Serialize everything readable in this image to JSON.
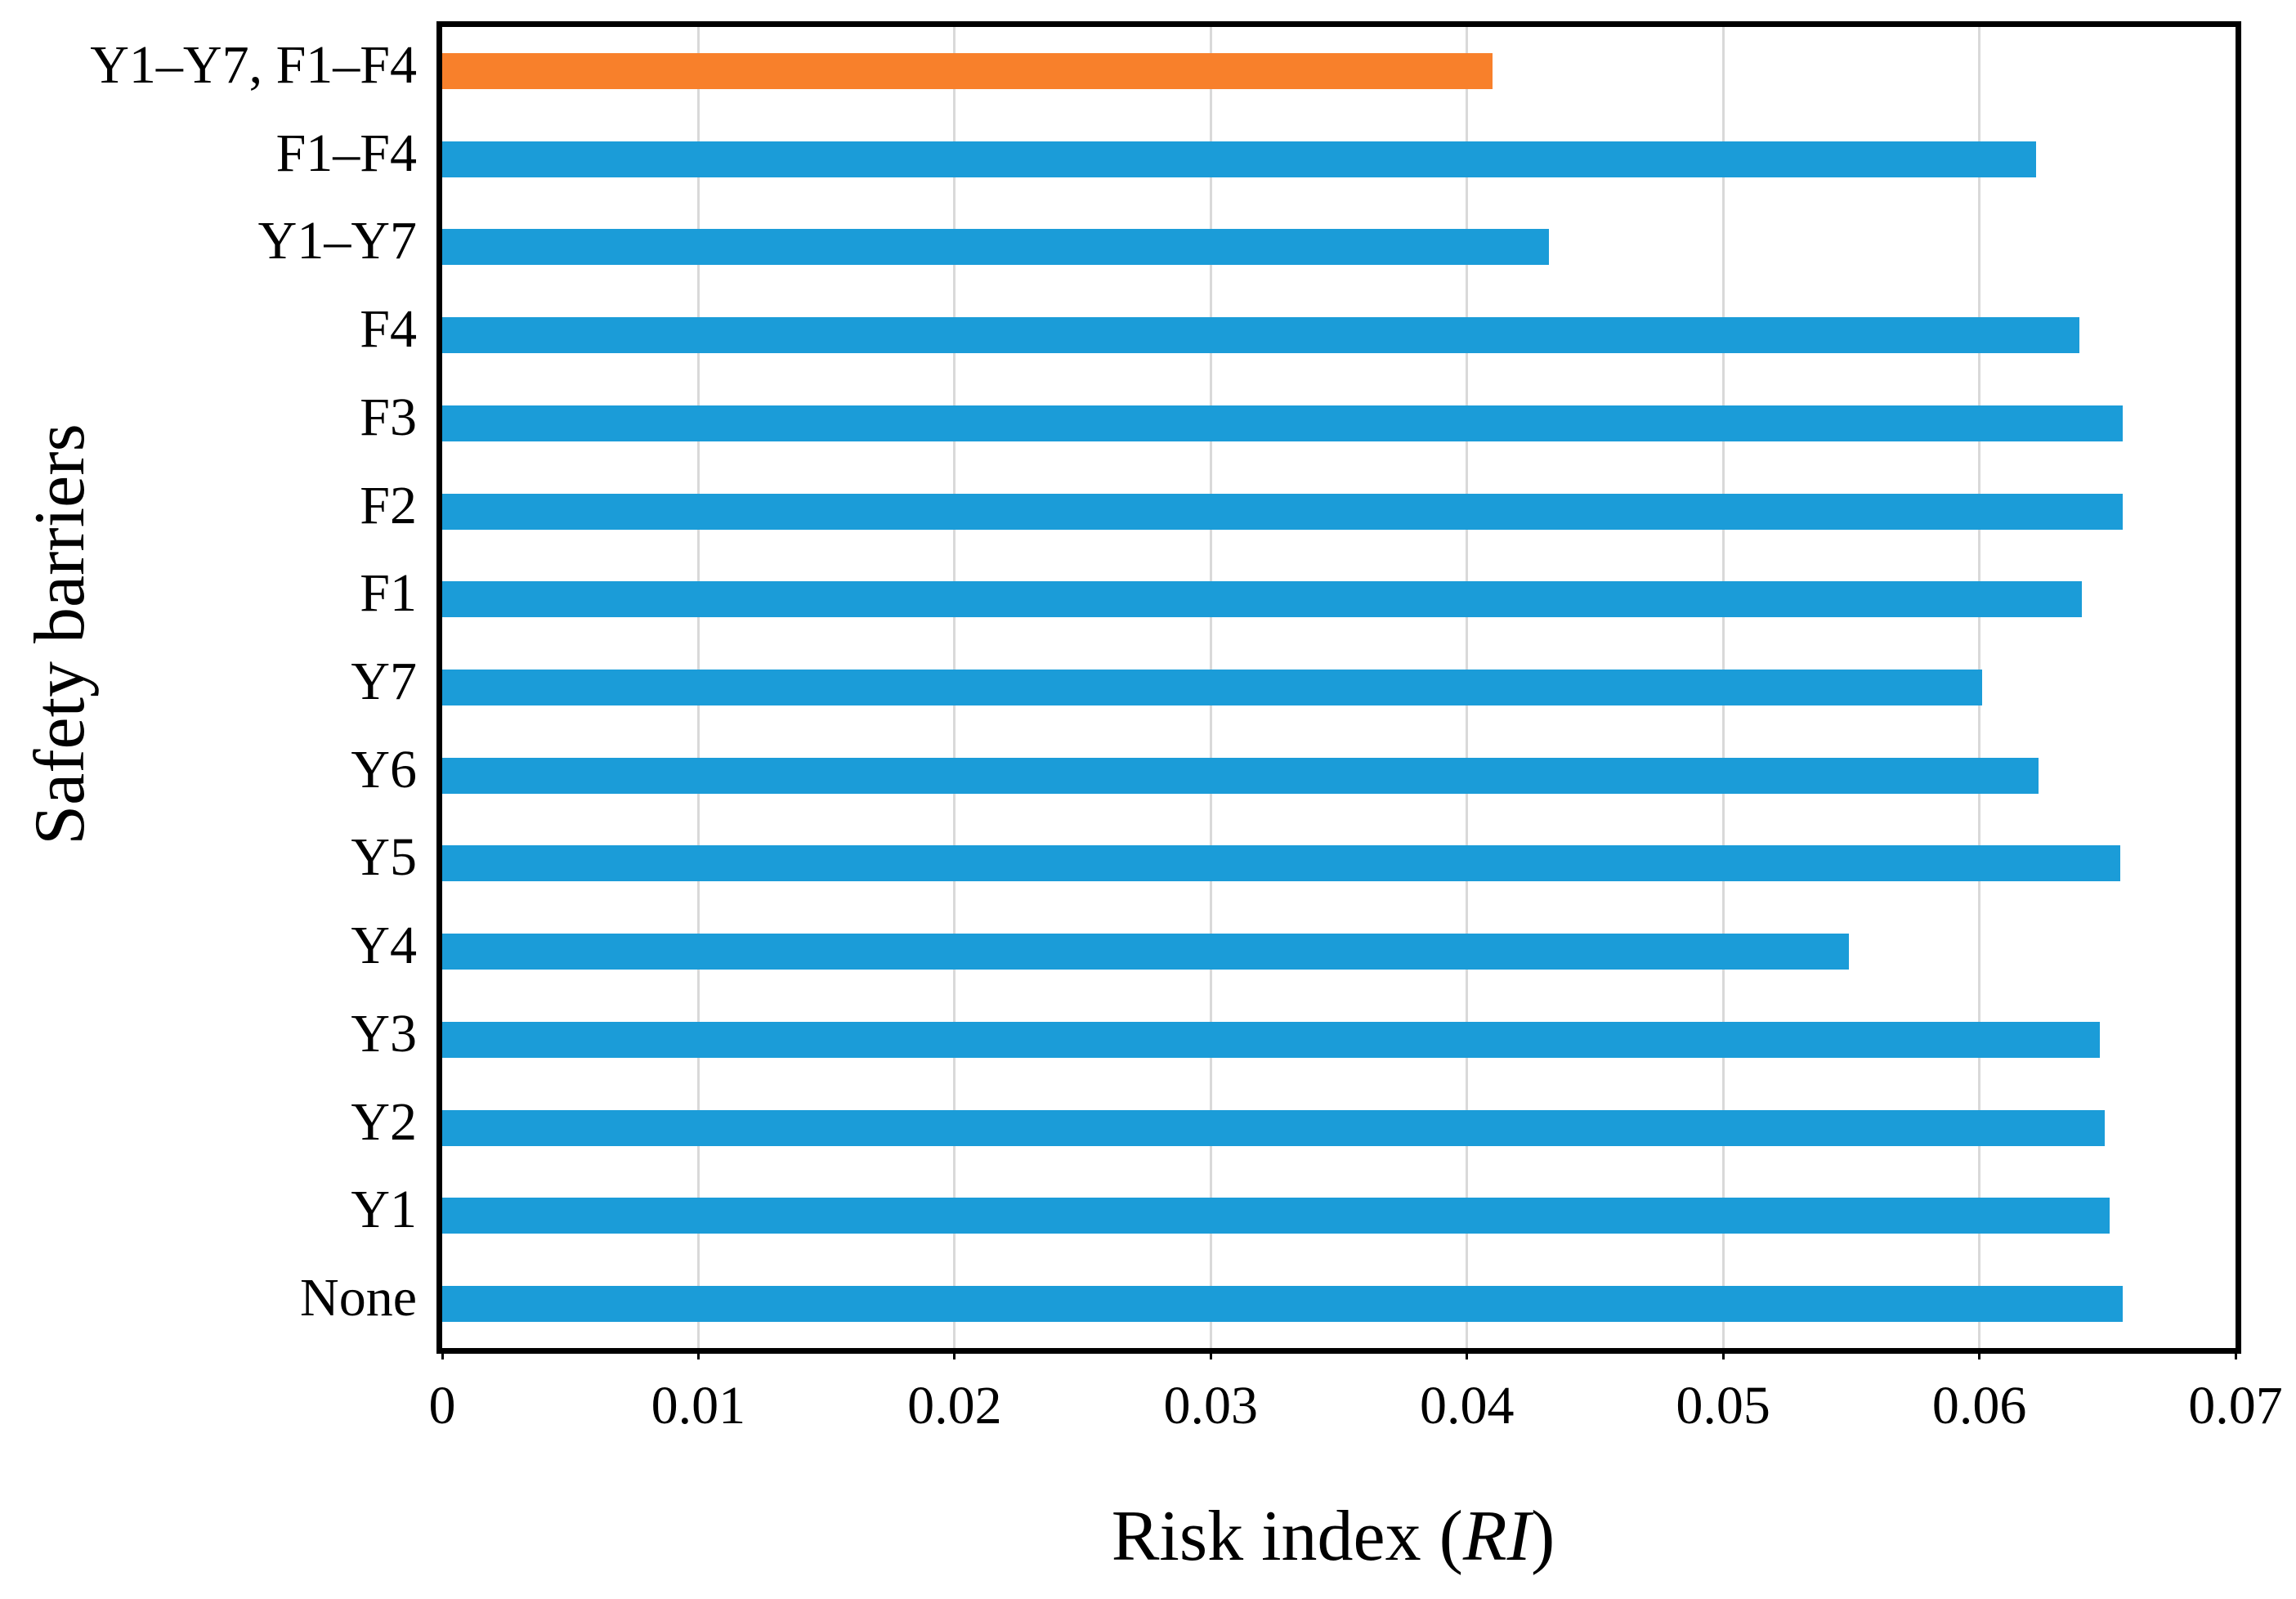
{
  "chart_data": {
    "type": "bar",
    "orientation": "horizontal",
    "xlabel_prefix": "Risk index (",
    "xlabel_italic": "RI",
    "xlabel_suffix": ")",
    "ylabel": "Safety barriers",
    "xlim": [
      0,
      0.07
    ],
    "x_ticks": [
      {
        "label": "0",
        "value": 0
      },
      {
        "label": "0.01",
        "value": 0.01
      },
      {
        "label": "0.02",
        "value": 0.02
      },
      {
        "label": "0.03",
        "value": 0.03
      },
      {
        "label": "0.04",
        "value": 0.04
      },
      {
        "label": "0.05",
        "value": 0.05
      },
      {
        "label": "0.06",
        "value": 0.06
      },
      {
        "label": "0.07",
        "value": 0.07
      }
    ],
    "grid": "vertical",
    "legend": "none",
    "categories_top_to_bottom": [
      "Y1–Y7, F1–F4",
      "F1–F4",
      "Y1–Y7",
      "F4",
      "F3",
      "F2",
      "F1",
      "Y7",
      "Y6",
      "Y5",
      "Y4",
      "Y3",
      "Y2",
      "Y1",
      "None"
    ],
    "bars": [
      {
        "label": "Y1–Y7, F1–F4",
        "value": 0.041,
        "color": "#F8802B"
      },
      {
        "label": "F1–F4",
        "value": 0.0622,
        "color": "#1B9CD8"
      },
      {
        "label": "Y1–Y7",
        "value": 0.0432,
        "color": "#1B9CD8"
      },
      {
        "label": "F4",
        "value": 0.0639,
        "color": "#1B9CD8"
      },
      {
        "label": "F3",
        "value": 0.0656,
        "color": "#1B9CD8"
      },
      {
        "label": "F2",
        "value": 0.0656,
        "color": "#1B9CD8"
      },
      {
        "label": "F1",
        "value": 0.064,
        "color": "#1B9CD8"
      },
      {
        "label": "Y7",
        "value": 0.0601,
        "color": "#1B9CD8"
      },
      {
        "label": "Y6",
        "value": 0.0623,
        "color": "#1B9CD8"
      },
      {
        "label": "Y5",
        "value": 0.0655,
        "color": "#1B9CD8"
      },
      {
        "label": "Y4",
        "value": 0.0549,
        "color": "#1B9CD8"
      },
      {
        "label": "Y3",
        "value": 0.0647,
        "color": "#1B9CD8"
      },
      {
        "label": "Y2",
        "value": 0.0649,
        "color": "#1B9CD8"
      },
      {
        "label": "Y1",
        "value": 0.0651,
        "color": "#1B9CD8"
      },
      {
        "label": "None",
        "value": 0.0656,
        "color": "#1B9CD8"
      }
    ],
    "colors": {
      "bar_default": "#1B9CD8",
      "bar_highlight": "#F8802B",
      "gridline": "#D9D9D9",
      "axis": "#000000",
      "background": "#FFFFFF"
    }
  }
}
